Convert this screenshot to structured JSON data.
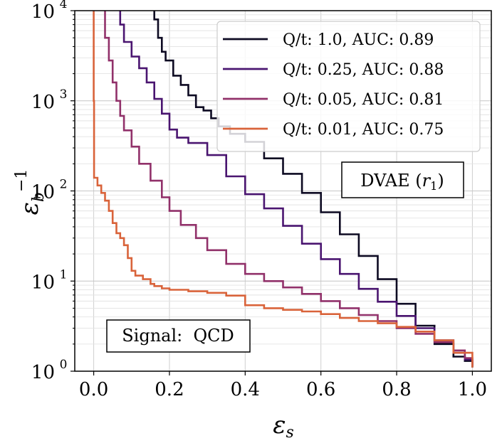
{
  "chart_data": {
    "type": "line",
    "xlabel": "εs",
    "ylabel": "εb−1",
    "xlim": [
      -0.05,
      1.05
    ],
    "ylim": [
      1,
      10000
    ],
    "yscale": "log",
    "grid": true,
    "legend_position": "top-right",
    "x_ticks": [
      "0.0",
      "0.2",
      "0.4",
      "0.6",
      "0.8",
      "1.0"
    ],
    "y_ticks": [
      {
        "base": "10",
        "exp": "0"
      },
      {
        "base": "10",
        "exp": "1"
      },
      {
        "base": "10",
        "exp": "2"
      },
      {
        "base": "10",
        "exp": "3"
      },
      {
        "base": "10",
        "exp": "4"
      }
    ],
    "annotations": [
      {
        "text": "DVAE (r1)"
      },
      {
        "text": "Signal:  QCD"
      }
    ],
    "series": [
      {
        "name": "Q/t: 1.0, AUC: 0.89",
        "color": "#0d0a22",
        "x": [
          0.16,
          0.16,
          0.17,
          0.18,
          0.19,
          0.21,
          0.23,
          0.25,
          0.27,
          0.29,
          0.31,
          0.33,
          0.36,
          0.4,
          0.45,
          0.5,
          0.55,
          0.6,
          0.65,
          0.7,
          0.75,
          0.8,
          0.85,
          0.9,
          0.95,
          0.98,
          1.0
        ],
        "y": [
          10000,
          8000,
          5000,
          3500,
          2800,
          1900,
          1500,
          1150,
          850,
          780,
          640,
          520,
          430,
          350,
          230,
          155,
          95,
          58,
          33,
          19,
          10.5,
          5.6,
          3.2,
          2.0,
          1.45,
          1.3,
          1.1
        ]
      },
      {
        "name": "Q/t: 0.25, AUC: 0.88",
        "color": "#4a1570",
        "x": [
          0.07,
          0.07,
          0.08,
          0.1,
          0.12,
          0.14,
          0.16,
          0.18,
          0.2,
          0.22,
          0.25,
          0.3,
          0.35,
          0.4,
          0.45,
          0.5,
          0.55,
          0.6,
          0.65,
          0.7,
          0.75,
          0.8,
          0.85,
          0.9,
          0.95,
          0.98,
          1.0
        ],
        "y": [
          10000,
          7000,
          4500,
          3100,
          2300,
          1600,
          1050,
          720,
          480,
          390,
          340,
          250,
          145,
          92,
          64,
          41,
          26,
          17.5,
          12,
          8.2,
          5.9,
          4.1,
          3.0,
          2.2,
          1.6,
          1.35,
          1.15
        ]
      },
      {
        "name": "Q/t: 0.05, AUC: 0.81",
        "color": "#91316a",
        "x": [
          0.03,
          0.03,
          0.04,
          0.05,
          0.06,
          0.07,
          0.08,
          0.1,
          0.12,
          0.15,
          0.18,
          0.2,
          0.23,
          0.27,
          0.3,
          0.35,
          0.4,
          0.45,
          0.5,
          0.55,
          0.6,
          0.65,
          0.7,
          0.75,
          0.8,
          0.85,
          0.9,
          0.95,
          0.98,
          1.0
        ],
        "y": [
          10000,
          5000,
          2800,
          1600,
          1000,
          680,
          470,
          310,
          200,
          130,
          85,
          60,
          42,
          30,
          22,
          15.5,
          12,
          10,
          8.5,
          7.2,
          6.0,
          5.0,
          4.2,
          3.6,
          3.0,
          2.6,
          2.1,
          1.7,
          1.4,
          1.15
        ]
      },
      {
        "name": "Q/t: 0.01, AUC: 0.75",
        "color": "#d9633a",
        "x": [
          0.0,
          0.0,
          0.001,
          0.01,
          0.02,
          0.03,
          0.04,
          0.05,
          0.06,
          0.07,
          0.08,
          0.09,
          0.1,
          0.11,
          0.13,
          0.15,
          0.16,
          0.18,
          0.2,
          0.25,
          0.3,
          0.35,
          0.4,
          0.45,
          0.5,
          0.55,
          0.6,
          0.65,
          0.7,
          0.75,
          0.8,
          0.85,
          0.9,
          0.95,
          1.0
        ],
        "y": [
          10000,
          1000,
          140,
          115,
          95,
          78,
          60,
          44,
          34,
          30,
          25,
          18,
          13,
          11.5,
          10.5,
          9.3,
          8.8,
          8.3,
          8.0,
          7.7,
          7.4,
          6.9,
          5.4,
          5.0,
          4.8,
          4.6,
          4.3,
          3.9,
          3.6,
          3.4,
          3.1,
          2.75,
          2.2,
          1.6,
          1.1
        ]
      }
    ]
  }
}
